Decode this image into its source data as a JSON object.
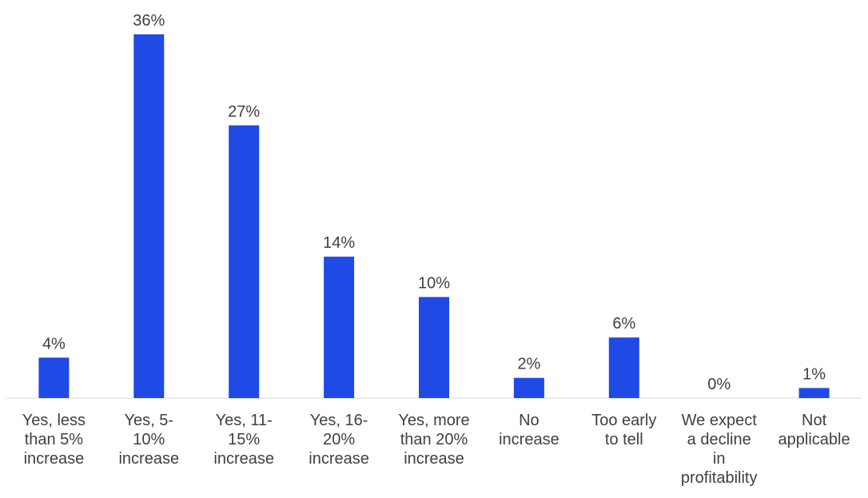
{
  "colors": {
    "bar": "#1f4ae6",
    "axis": "#d9d9d9",
    "text": "#404040"
  },
  "chart_data": {
    "type": "bar",
    "title": "",
    "xlabel": "",
    "ylabel": "",
    "ylim": [
      0,
      36
    ],
    "grid": false,
    "categories": [
      "Yes, less than 5% increase",
      "Yes, 5-10% increase",
      "Yes, 11-15% increase",
      "Yes, 16-20% increase",
      "Yes, more than 20% increase",
      "No increase",
      "Too early to tell",
      "We expect a decline in profitability",
      "Not applicable"
    ],
    "category_lines": [
      [
        "Yes, less",
        "than 5%",
        "increase"
      ],
      [
        "Yes, 5-",
        "10%",
        "increase"
      ],
      [
        "Yes, 11-",
        "15%",
        "increase"
      ],
      [
        "Yes, 16-",
        "20%",
        "increase"
      ],
      [
        "Yes, more",
        "than 20%",
        "increase"
      ],
      [
        "No",
        "increase"
      ],
      [
        "Too early",
        "to tell"
      ],
      [
        "We expect",
        "a decline",
        "in",
        "profitability"
      ],
      [
        "Not",
        "applicable"
      ]
    ],
    "values": [
      4,
      36,
      27,
      14,
      10,
      2,
      6,
      0,
      1
    ],
    "data_labels": [
      "4%",
      "36%",
      "27%",
      "14%",
      "10%",
      "2%",
      "6%",
      "0%",
      "1%"
    ]
  }
}
